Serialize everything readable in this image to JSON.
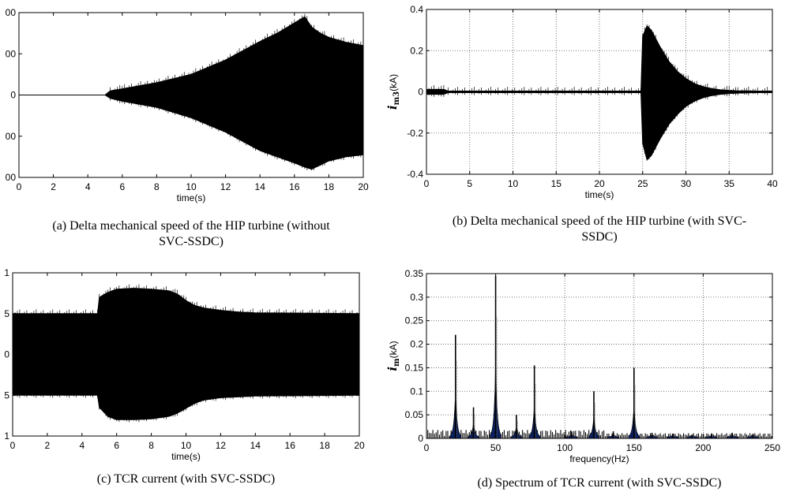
{
  "chart_data": [
    {
      "id": "a",
      "type": "line",
      "title": "",
      "xlabel": "time(s)",
      "ylabel": "",
      "xlim": [
        0,
        20
      ],
      "ylim": [
        -200,
        200
      ],
      "x_ticks": [
        "0",
        "2",
        "4",
        "6",
        "8",
        "10",
        "12",
        "14",
        "16",
        "18",
        "20"
      ],
      "y_ticks": [
        "00",
        "00",
        "0",
        "00",
        "00"
      ],
      "grid": false,
      "series": [
        {
          "style": "dense oscillation envelope",
          "x": [
            0,
            5,
            5.3,
            6,
            8,
            10,
            12,
            14,
            15,
            16,
            16.6,
            17,
            17.5,
            18,
            19,
            20
          ],
          "upper": [
            0,
            0,
            10,
            15,
            30,
            50,
            85,
            130,
            150,
            175,
            190,
            165,
            150,
            140,
            128,
            120
          ],
          "lower": [
            0,
            0,
            -8,
            -15,
            -30,
            -55,
            -90,
            -135,
            -150,
            -165,
            -175,
            -180,
            -170,
            -160,
            -150,
            -145
          ]
        }
      ],
      "caption": "(a) Delta mechanical speed of the HIP turbine (without SVC-SSDC)",
      "caption_lines": [
        "(a) Delta mechanical speed of the HIP turbine (without",
        "SVC-SSDC)"
      ]
    },
    {
      "id": "b",
      "type": "line",
      "title": "",
      "xlabel": "time(s)",
      "ylabel": "i m3 (kA)",
      "ylabel_main": "i",
      "ylabel_sub": "m3",
      "ylabel_unit": "(kA)",
      "xlim": [
        0,
        40
      ],
      "ylim": [
        -0.4,
        0.4
      ],
      "x_ticks": [
        "0",
        "5",
        "10",
        "15",
        "20",
        "25",
        "30",
        "35",
        "40"
      ],
      "y_ticks": [
        "0.4",
        "0.2",
        "0",
        "-0.2",
        "-0.4"
      ],
      "grid": true,
      "series": [
        {
          "style": "dense oscillation envelope",
          "x": [
            0,
            2,
            2.5,
            24.8,
            25,
            25.5,
            26,
            27,
            28,
            29,
            30,
            31,
            32,
            33,
            34,
            35,
            36,
            37,
            38,
            40
          ],
          "upper": [
            0.012,
            0.012,
            0.004,
            0.004,
            0.27,
            0.32,
            0.3,
            0.22,
            0.15,
            0.1,
            0.065,
            0.04,
            0.025,
            0.016,
            0.01,
            0.007,
            0.005,
            0.005,
            0.004,
            0.004
          ],
          "lower": [
            -0.012,
            -0.012,
            -0.004,
            -0.004,
            -0.25,
            -0.33,
            -0.31,
            -0.23,
            -0.16,
            -0.11,
            -0.07,
            -0.045,
            -0.028,
            -0.018,
            -0.012,
            -0.008,
            -0.006,
            -0.005,
            -0.004,
            -0.004
          ]
        }
      ],
      "caption": "(b) Delta mechanical speed of the HIP turbine (with SVC-SSDC)",
      "caption_lines": [
        "(b) Delta mechanical speed of the HIP turbine (with SVC-",
        "SSDC)"
      ]
    },
    {
      "id": "c",
      "type": "line",
      "title": "",
      "xlabel": "time(s)",
      "ylabel": "",
      "xlim": [
        0,
        20
      ],
      "ylim": [
        -1,
        1
      ],
      "x_ticks": [
        "0",
        "2",
        "4",
        "6",
        "8",
        "10",
        "12",
        "14",
        "16",
        "18",
        "20"
      ],
      "y_ticks": [
        "1",
        "5",
        "0",
        "5",
        "1"
      ],
      "grid": false,
      "series": [
        {
          "style": "dense oscillation envelope",
          "x": [
            0,
            4.9,
            5.0,
            5.5,
            6,
            7,
            8,
            9,
            9.5,
            10,
            10.5,
            11,
            12,
            13,
            14,
            20
          ],
          "upper": [
            0.5,
            0.5,
            0.7,
            0.76,
            0.8,
            0.81,
            0.8,
            0.78,
            0.74,
            0.66,
            0.6,
            0.57,
            0.54,
            0.52,
            0.51,
            0.5
          ],
          "lower": [
            -0.5,
            -0.5,
            -0.65,
            -0.76,
            -0.8,
            -0.8,
            -0.79,
            -0.76,
            -0.72,
            -0.66,
            -0.6,
            -0.56,
            -0.53,
            -0.52,
            -0.51,
            -0.5
          ]
        }
      ],
      "caption": "(c) TCR current (with SVC-SSDC)"
    },
    {
      "id": "d",
      "type": "bar",
      "title": "",
      "xlabel": "frequency(Hz)",
      "ylabel": "i m (kA)",
      "ylabel_main": "i",
      "ylabel_sub": "m",
      "ylabel_unit": "(kA)",
      "xlim": [
        0,
        250
      ],
      "ylim": [
        0,
        0.35
      ],
      "x_ticks": [
        "0",
        "50",
        "100",
        "150",
        "200",
        "250"
      ],
      "y_ticks": [
        "0.35",
        "0.3",
        "0.25",
        "0.2",
        "0.15",
        "0.1",
        "0.05",
        "0"
      ],
      "grid": true,
      "peaks": [
        {
          "f": 21,
          "v": 0.22
        },
        {
          "f": 34,
          "v": 0.066
        },
        {
          "f": 50,
          "v": 0.345
        },
        {
          "f": 65,
          "v": 0.05
        },
        {
          "f": 78,
          "v": 0.155
        },
        {
          "f": 105,
          "v": 0.015
        },
        {
          "f": 121,
          "v": 0.1
        },
        {
          "f": 135,
          "v": 0.015
        },
        {
          "f": 150,
          "v": 0.15
        },
        {
          "f": 163,
          "v": 0.012
        },
        {
          "f": 178,
          "v": 0.01
        },
        {
          "f": 192,
          "v": 0.008
        },
        {
          "f": 206,
          "v": 0.01
        },
        {
          "f": 221,
          "v": 0.012
        },
        {
          "f": 236,
          "v": 0.01
        }
      ],
      "caption": "(d) Spectrum of TCR current (with SVC-SSDC)"
    }
  ]
}
